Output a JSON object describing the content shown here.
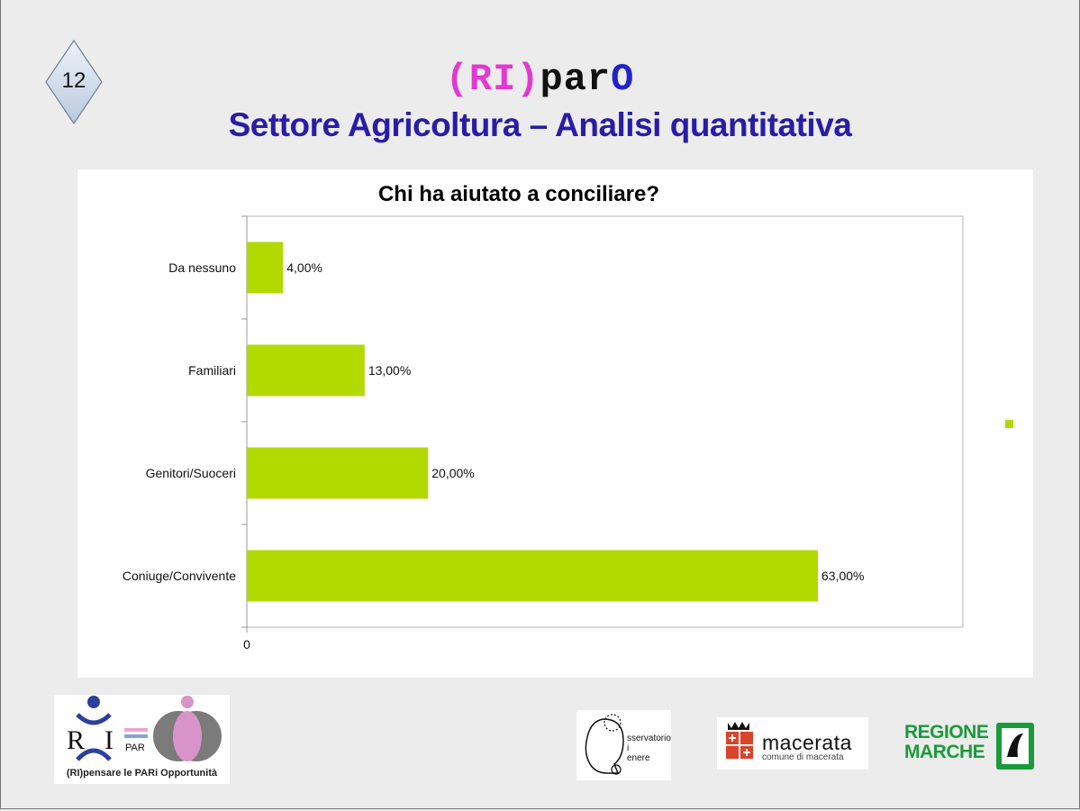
{
  "slide": {
    "number": "12",
    "brand_part1": "(RI)",
    "brand_part2": "par",
    "brand_part3": "O",
    "subtitle": "Settore Agricoltura – Analisi quantitativa"
  },
  "chart_data": {
    "type": "bar",
    "orientation": "horizontal",
    "title": "Chi ha aiutato a conciliare?",
    "categories": [
      "Da nessuno",
      "Familiari",
      "Genitori/Suoceri",
      "Coniuge/Convivente"
    ],
    "values": [
      4,
      13,
      20,
      63
    ],
    "data_labels": [
      "4,00%",
      "13,00%",
      "20,00%",
      "63,00%"
    ],
    "x_tick_labels": [
      "0"
    ],
    "xlim": [
      0,
      79
    ],
    "bar_color": "#b2d900",
    "grid": false,
    "legend": "right"
  },
  "logos": {
    "ripar_caption": "(RI)pensare le PARi Opportunità",
    "ripar_r": "R",
    "ripar_i": "I",
    "ripar_par": "PAR",
    "osservatorio_text": "sservatorio\ni\nenere",
    "macerata_word": "macerata",
    "macerata_sub": "comune di macerata",
    "regione_line1": "REGIONE",
    "regione_line2": "MARCHE"
  }
}
